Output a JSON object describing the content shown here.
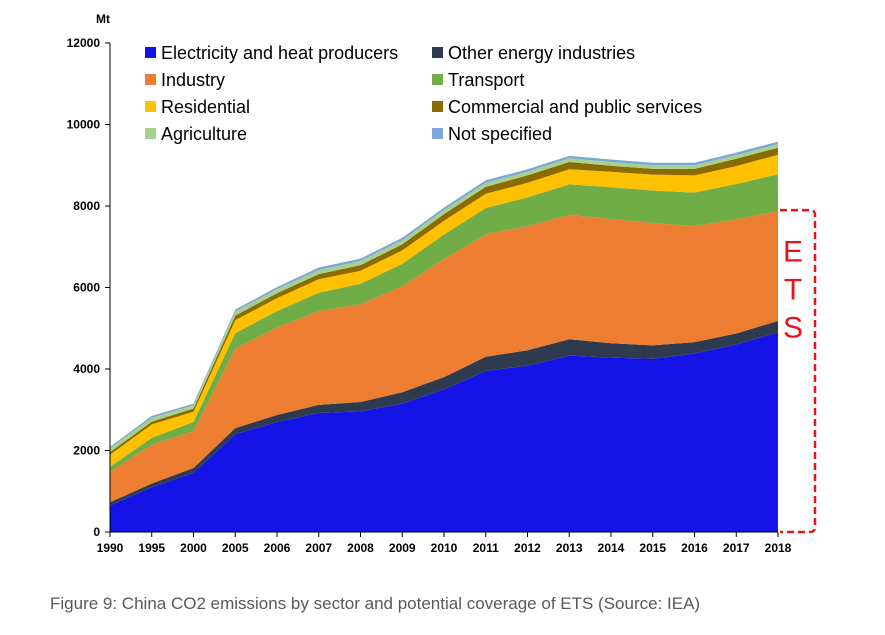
{
  "chart_data": {
    "type": "area",
    "stacked": true,
    "unit_label": "Mt",
    "ylim": [
      0,
      12000
    ],
    "yticks": [
      0,
      2000,
      4000,
      6000,
      8000,
      10000,
      12000
    ],
    "x": [
      "1990",
      "1995",
      "2000",
      "2005",
      "2006",
      "2007",
      "2008",
      "2009",
      "2010",
      "2011",
      "2012",
      "2013",
      "2014",
      "2015",
      "2016",
      "2017",
      "2018"
    ],
    "series": [
      {
        "name": "Electricity and heat producers",
        "color": "#1414e6",
        "values": [
          650,
          1100,
          1450,
          2400,
          2700,
          2920,
          2960,
          3150,
          3500,
          3950,
          4080,
          4330,
          4280,
          4250,
          4380,
          4600,
          4900
        ]
      },
      {
        "name": "Other energy industries",
        "color": "#2e3b4e",
        "values": [
          80,
          90,
          120,
          150,
          170,
          200,
          230,
          280,
          300,
          350,
          380,
          400,
          350,
          330,
          280,
          270,
          280
        ]
      },
      {
        "name": "Industry",
        "color": "#ed7d31",
        "values": [
          750,
          950,
          900,
          1950,
          2150,
          2300,
          2400,
          2600,
          2900,
          3000,
          3050,
          3050,
          3050,
          3000,
          2850,
          2800,
          2700
        ]
      },
      {
        "name": "Transport",
        "color": "#70ad47",
        "values": [
          120,
          170,
          230,
          380,
          400,
          450,
          500,
          550,
          600,
          650,
          700,
          750,
          780,
          800,
          820,
          870,
          900
        ]
      },
      {
        "name": "Residential",
        "color": "#ffc000",
        "values": [
          300,
          330,
          250,
          320,
          320,
          330,
          320,
          330,
          340,
          350,
          360,
          370,
          380,
          390,
          420,
          440,
          480
        ]
      },
      {
        "name": "Commercial and public services",
        "color": "#8b6a00",
        "values": [
          60,
          70,
          80,
          110,
          120,
          130,
          140,
          150,
          160,
          170,
          180,
          180,
          150,
          140,
          160,
          180,
          170
        ]
      },
      {
        "name": "Agriculture",
        "color": "#a9d18e",
        "values": [
          100,
          90,
          80,
          100,
          100,
          100,
          100,
          100,
          100,
          100,
          90,
          90,
          90,
          90,
          90,
          90,
          90
        ]
      },
      {
        "name": "Not specified",
        "color": "#7aa7d8",
        "values": [
          30,
          50,
          40,
          50,
          50,
          60,
          60,
          60,
          60,
          60,
          60,
          60,
          60,
          60,
          60,
          60,
          60
        ]
      }
    ],
    "annotation": {
      "text": "ETS",
      "color": "#e8141c",
      "range": [
        0,
        7900
      ]
    }
  },
  "caption": "Figure 9: China CO2 emissions by sector and potential coverage of ETS (Source: IEA)"
}
